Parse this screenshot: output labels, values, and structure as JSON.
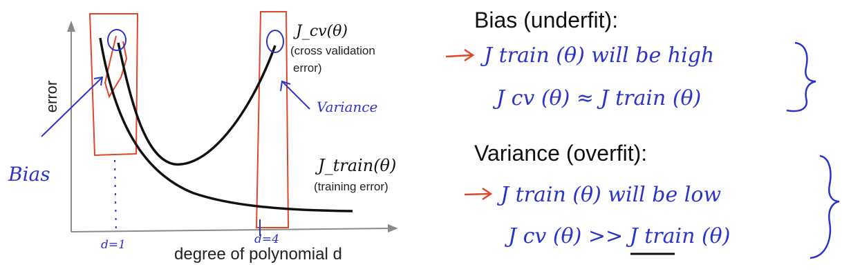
{
  "colors": {
    "ink": "#111111",
    "axis": "#888888",
    "pen_blue": "#2a34c8",
    "pen_red": "#e0452a"
  },
  "plot": {
    "y_axis_label": "error",
    "x_axis_label": "degree of polynomial d",
    "cv_curve_label": "J_cv(θ)",
    "cv_curve_desc_1": "(cross validation",
    "cv_curve_desc_2": "error)",
    "train_curve_label": "J_train(θ)",
    "train_curve_desc": "(training error)"
  },
  "annotations": {
    "bias": "Bias",
    "variance": "Variance",
    "d_low": "d=1",
    "d_high": "d=4"
  },
  "notes": {
    "bias_heading": "Bias (underfit):",
    "bias_line_1": "J train (θ) will be high",
    "bias_line_2": "J cv (θ) ≈ J train (θ)",
    "variance_heading": "Variance (overfit):",
    "variance_line_1": "J train (θ) will be low",
    "variance_line_2": "J cv (θ) >> J train (θ)"
  }
}
